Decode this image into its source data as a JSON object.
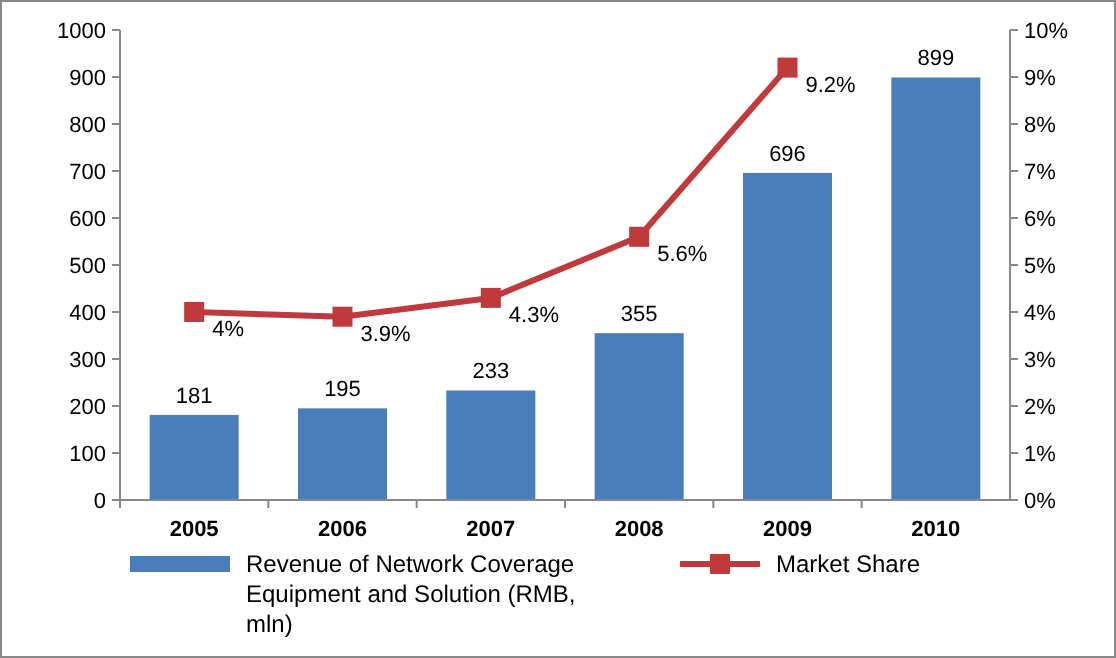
{
  "chart_data": {
    "type": "bar",
    "categories": [
      "2005",
      "2006",
      "2007",
      "2008",
      "2009",
      "2010"
    ],
    "series": [
      {
        "name": "Revenue of Network Coverage Equipment and Solution (RMB, mln)",
        "color": "#4a7ebb",
        "values": [
          181,
          195,
          233,
          355,
          696,
          899
        ]
      },
      {
        "name": "Market Share",
        "type": "line",
        "axis": "y2",
        "color": "#c0393b",
        "marker": "square",
        "values": [
          4,
          3.9,
          4.3,
          5.6,
          9.2,
          null
        ],
        "value_labels": [
          "4%",
          "3.9%",
          "4.3%",
          "5.6%",
          "9.2%",
          null
        ]
      }
    ],
    "data_labels": true,
    "ylim": [
      0,
      1000
    ],
    "yticks": [
      0,
      100,
      200,
      300,
      400,
      500,
      600,
      700,
      800,
      900,
      1000
    ],
    "y2lim": [
      0,
      10
    ],
    "y2ticks": [
      {
        "value": 0,
        "label": "0%"
      },
      {
        "value": 1,
        "label": "1%"
      },
      {
        "value": 2,
        "label": "2%"
      },
      {
        "value": 3,
        "label": "3%"
      },
      {
        "value": 4,
        "label": "4%"
      },
      {
        "value": 5,
        "label": "5%"
      },
      {
        "value": 6,
        "label": "6%"
      },
      {
        "value": 7,
        "label": "7%"
      },
      {
        "value": 8,
        "label": "8%"
      },
      {
        "value": 9,
        "label": "9%"
      },
      {
        "value": 10,
        "label": "10%"
      }
    ],
    "legend": "bottom"
  }
}
